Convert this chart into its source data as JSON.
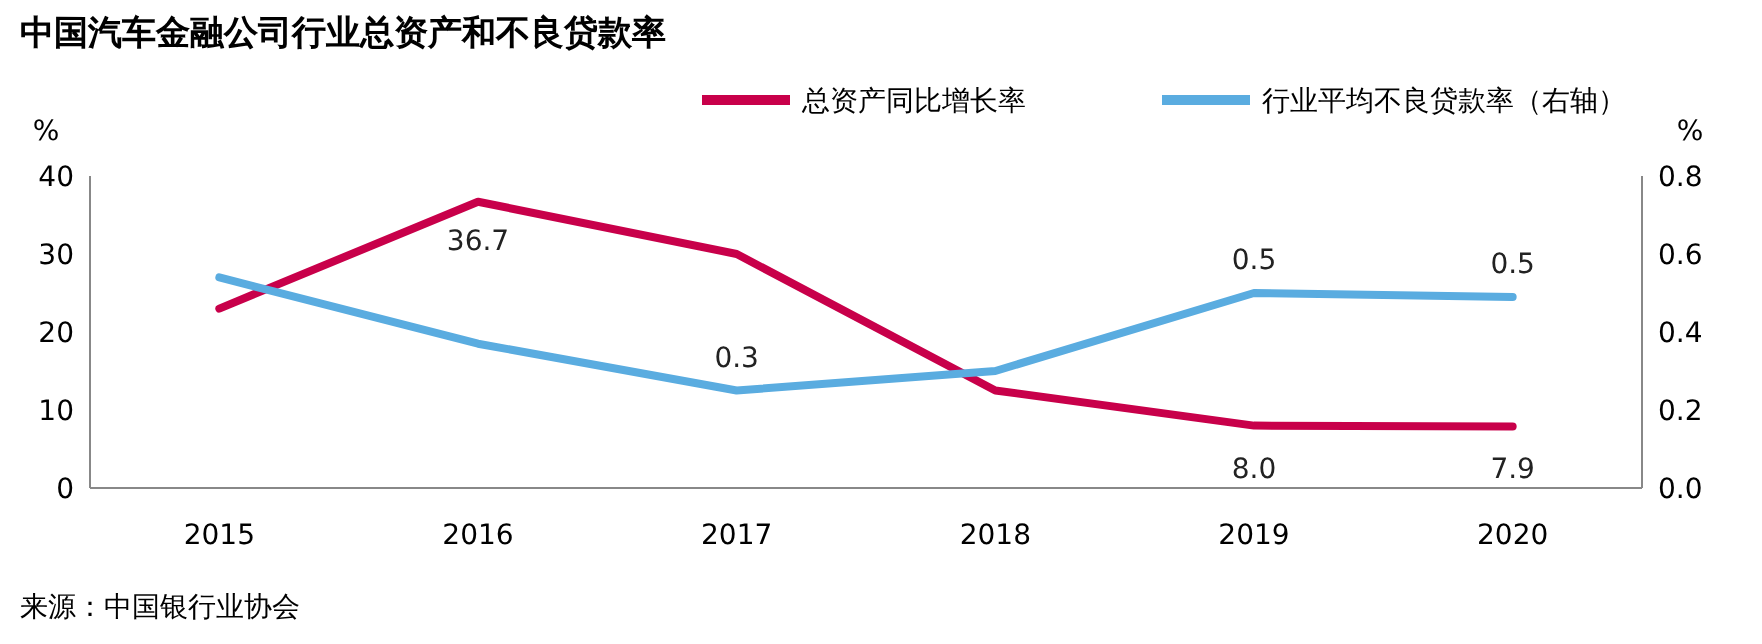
{
  "chart_data": {
    "type": "line",
    "title": "中国汽车金融公司行业总资产和不良贷款率",
    "ylabel": "%",
    "y2label": "%",
    "categories": [
      "2015",
      "2016",
      "2017",
      "2018",
      "2019",
      "2020"
    ],
    "series": [
      {
        "name": "总资产同比增长率",
        "color": "#c8004a",
        "values": [
          23,
          36.7,
          30,
          12.5,
          8.0,
          7.9
        ],
        "value_labels": [
          null,
          "36.7",
          null,
          null,
          "8.0",
          "7.9"
        ]
      },
      {
        "name": "行业平均不良贷款率（右轴）",
        "color": "#5aace0",
        "axis": "y2",
        "values": [
          0.54,
          0.37,
          0.25,
          0.3,
          0.5,
          0.49
        ],
        "value_labels": [
          null,
          null,
          "0.3",
          null,
          "0.5",
          "0.5"
        ]
      }
    ],
    "ylim": [
      0,
      40
    ],
    "yticks": [
      0,
      10,
      20,
      30,
      40
    ],
    "y2lim": [
      0,
      0.8
    ],
    "y2ticks": [
      {
        "value": 0,
        "label": "0.0"
      },
      {
        "value": 0.2,
        "label": "0.2"
      },
      {
        "value": 0.4,
        "label": "0.4"
      },
      {
        "value": 0.6,
        "label": "0.6"
      },
      {
        "value": 0.8,
        "label": "0.8"
      }
    ],
    "legend": "top right",
    "grid": false,
    "marker": "none",
    "line_style": "solid",
    "annotations": [
      "来源：中国银行业协会"
    ]
  }
}
